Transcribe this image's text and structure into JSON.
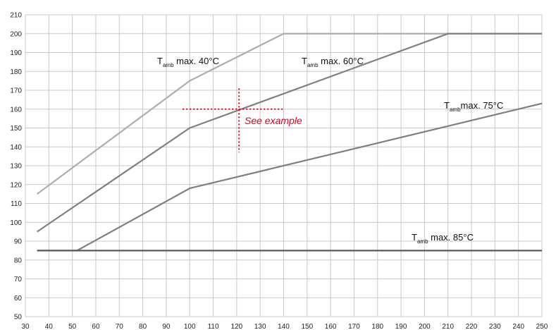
{
  "chart_data": {
    "type": "line",
    "title": "",
    "xlabel": "",
    "ylabel": "",
    "xlim": [
      30,
      250
    ],
    "ylim": [
      50,
      210
    ],
    "x_ticks": [
      30,
      40,
      50,
      60,
      70,
      80,
      90,
      100,
      110,
      120,
      130,
      140,
      150,
      160,
      170,
      180,
      190,
      200,
      210,
      220,
      230,
      240,
      250
    ],
    "y_ticks": [
      50,
      60,
      70,
      80,
      90,
      100,
      110,
      120,
      130,
      140,
      150,
      160,
      170,
      180,
      190,
      200,
      210
    ],
    "grid": true,
    "series": [
      {
        "id": "t40",
        "label_main": "T",
        "label_sub": "amb",
        "label_rest": " max. 40°C",
        "color": "#adadad",
        "points": [
          [
            35,
            115
          ],
          [
            100,
            175
          ],
          [
            140,
            200
          ],
          [
            250,
            200
          ]
        ]
      },
      {
        "id": "t60",
        "label_main": "T",
        "label_sub": "amb",
        "label_rest": " max. 60°C",
        "color": "#7f7f7f",
        "points": [
          [
            35,
            95
          ],
          [
            100,
            150
          ],
          [
            210,
            200
          ],
          [
            250,
            200
          ]
        ]
      },
      {
        "id": "t75",
        "label_main": "T",
        "label_sub": "amb",
        "label_rest": "max. 75°C",
        "color": "#7f7f7f",
        "points": [
          [
            35,
            85
          ],
          [
            52,
            85
          ],
          [
            100,
            118
          ],
          [
            250,
            163
          ]
        ]
      },
      {
        "id": "t85",
        "label_main": "T",
        "label_sub": "amb",
        "label_rest": " max. 85°C",
        "color": "#5a5a5a",
        "points": [
          [
            35,
            85
          ],
          [
            250,
            85
          ]
        ]
      }
    ],
    "example": {
      "text": "See example",
      "x": 121,
      "y": 160,
      "color": "#e0001b",
      "h_from": 97,
      "h_to": 140,
      "v_from": 137,
      "v_to": 171
    }
  }
}
